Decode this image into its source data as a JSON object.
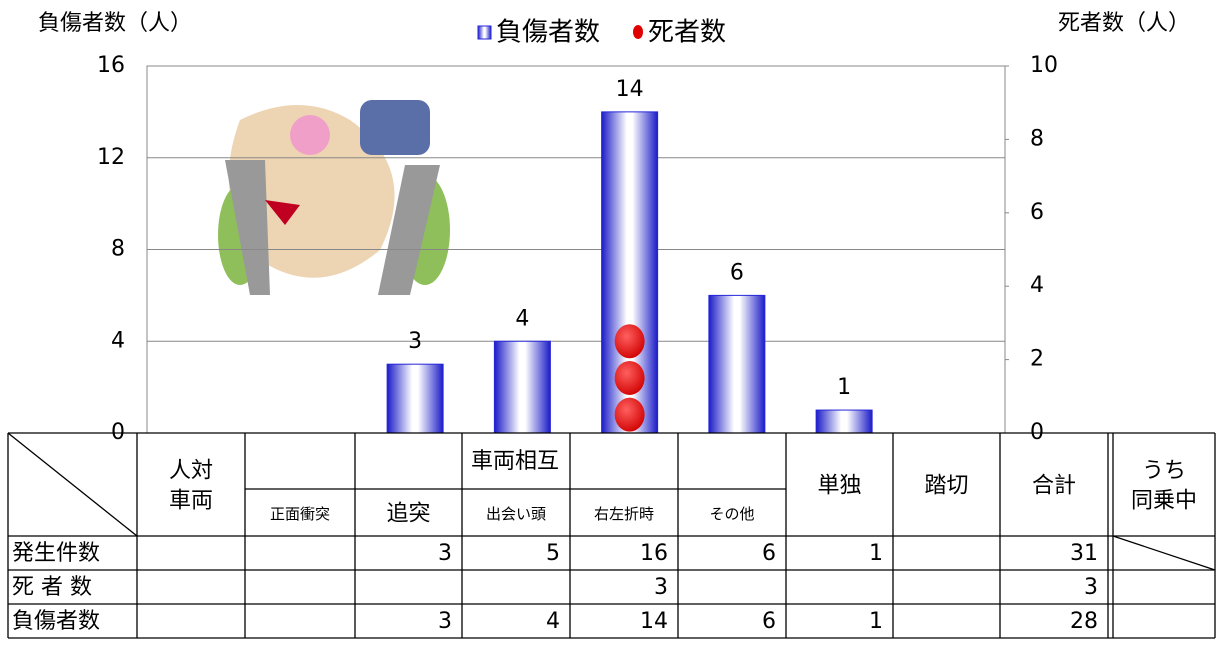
{
  "chart_data": {
    "type": "bar",
    "y_label": "負傷者数（人）",
    "y2_label": "死者数（人）",
    "series": [
      {
        "name": "負傷者数",
        "color": "#2626d8",
        "values": [
          null,
          null,
          3,
          4,
          14,
          6,
          1,
          null
        ]
      },
      {
        "name": "死者数",
        "color": "#e00000",
        "axis": "y2",
        "values": [
          null,
          null,
          null,
          null,
          3,
          null,
          null,
          null
        ]
      }
    ],
    "ylim": [
      0,
      16
    ],
    "yticks": [
      0,
      4,
      8,
      12,
      16
    ],
    "y2lim": [
      0,
      10
    ],
    "y2ticks": [
      0,
      2,
      4,
      6,
      8,
      10
    ],
    "grid": true
  },
  "table": {
    "group": "車両相互",
    "columns": [
      [
        "人対",
        "車両"
      ],
      [
        "正面衝突"
      ],
      [
        "追突"
      ],
      [
        "出会い頭"
      ],
      [
        "右左折時"
      ],
      [
        "その他"
      ],
      [
        "単独"
      ],
      [
        "踏切"
      ],
      [
        "合計"
      ],
      [
        "うち",
        "同乗中"
      ]
    ],
    "rows": [
      {
        "label": "発生件数",
        "cells": [
          null,
          null,
          "3",
          "5",
          "16",
          "6",
          "1",
          null,
          "31",
          null
        ]
      },
      {
        "label": "死 者 数",
        "cells": [
          null,
          null,
          null,
          null,
          "3",
          null,
          null,
          null,
          "3",
          null
        ]
      },
      {
        "label": "負傷者数",
        "cells": [
          null,
          null,
          "3",
          "4",
          "14",
          "6",
          "1",
          null,
          "28",
          null
        ]
      }
    ]
  }
}
